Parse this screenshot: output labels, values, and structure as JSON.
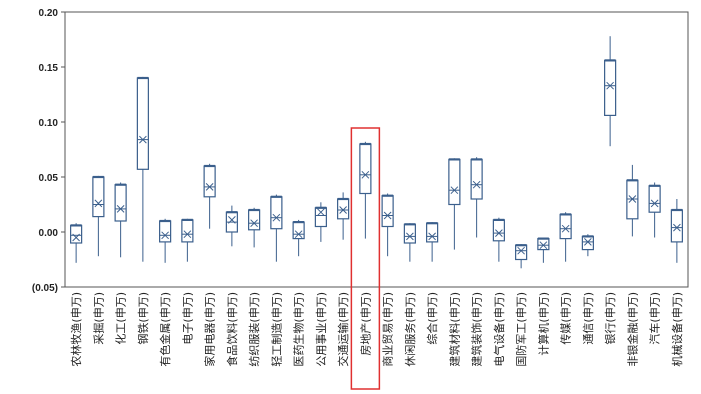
{
  "chart_data": {
    "type": "box",
    "y_axis": {
      "min": -0.05,
      "max": 0.2,
      "ticks": [
        0.2,
        0.15,
        0.1,
        0.05,
        0.0,
        -0.05
      ],
      "tick_labels": [
        "0.20",
        "0.15",
        "0.10",
        "0.05",
        "0.00",
        "(0.05)"
      ]
    },
    "grid": false,
    "legend": "none",
    "colors": {
      "box": "#3b5f8c",
      "highlight": "#e03030",
      "axis": "#555555"
    },
    "highlight_category": "房地产(申万)",
    "categories": [
      "农林牧渔(申万)",
      "采掘(申万)",
      "化工(申万)",
      "钢铁(申万)",
      "有色金属(申万)",
      "电子(申万)",
      "家用电器(申万)",
      "食品饮料(申万)",
      "纺织服装(申万)",
      "轻工制造(申万)",
      "医药生物(申万)",
      "公用事业(申万)",
      "交通运输(申万)",
      "房地产(申万)",
      "商业贸易(申万)",
      "休闲服务(申万)",
      "综合(申万)",
      "建筑材料(申万)",
      "建筑装饰(申万)",
      "电气设备(申万)",
      "国防军工(申万)",
      "计算机(申万)",
      "传媒(申万)",
      "通信(申万)",
      "银行(申万)",
      "非银金融(申万)",
      "汽车(申万)",
      "机械设备(申万)"
    ],
    "series": [
      {
        "min": -0.028,
        "q1": -0.01,
        "median": -0.003,
        "mean": -0.005,
        "q3": 0.006,
        "max": 0.008
      },
      {
        "min": -0.022,
        "q1": 0.014,
        "median": 0.025,
        "mean": 0.026,
        "q3": 0.05,
        "max": 0.051
      },
      {
        "min": -0.023,
        "q1": 0.01,
        "median": 0.021,
        "mean": 0.021,
        "q3": 0.043,
        "max": 0.045
      },
      {
        "min": -0.027,
        "q1": 0.057,
        "median": 0.084,
        "mean": 0.084,
        "q3": 0.14,
        "max": 0.141
      },
      {
        "min": -0.028,
        "q1": -0.009,
        "median": -0.003,
        "mean": -0.003,
        "q3": 0.01,
        "max": 0.012
      },
      {
        "min": -0.027,
        "q1": -0.009,
        "median": -0.002,
        "mean": -0.002,
        "q3": 0.011,
        "max": 0.012
      },
      {
        "min": 0.003,
        "q1": 0.032,
        "median": 0.041,
        "mean": 0.041,
        "q3": 0.06,
        "max": 0.062
      },
      {
        "min": -0.013,
        "q1": 0.0,
        "median": 0.009,
        "mean": 0.011,
        "q3": 0.018,
        "max": 0.024
      },
      {
        "min": -0.014,
        "q1": 0.002,
        "median": 0.008,
        "mean": 0.008,
        "q3": 0.02,
        "max": 0.022
      },
      {
        "min": -0.027,
        "q1": 0.003,
        "median": 0.013,
        "mean": 0.013,
        "q3": 0.032,
        "max": 0.034
      },
      {
        "min": -0.022,
        "q1": -0.006,
        "median": -0.002,
        "mean": -0.002,
        "q3": 0.009,
        "max": 0.011
      },
      {
        "min": -0.009,
        "q1": 0.005,
        "median": 0.015,
        "mean": 0.018,
        "q3": 0.022,
        "max": 0.027
      },
      {
        "min": -0.007,
        "q1": 0.012,
        "median": 0.02,
        "mean": 0.02,
        "q3": 0.03,
        "max": 0.036
      },
      {
        "min": -0.006,
        "q1": 0.035,
        "median": 0.052,
        "mean": 0.052,
        "q3": 0.08,
        "max": 0.082
      },
      {
        "min": -0.022,
        "q1": 0.005,
        "median": 0.015,
        "mean": 0.015,
        "q3": 0.033,
        "max": 0.035
      },
      {
        "min": -0.027,
        "q1": -0.01,
        "median": -0.004,
        "mean": -0.004,
        "q3": 0.007,
        "max": 0.008
      },
      {
        "min": -0.027,
        "q1": -0.009,
        "median": -0.004,
        "mean": -0.004,
        "q3": 0.008,
        "max": 0.009
      },
      {
        "min": -0.016,
        "q1": 0.025,
        "median": 0.038,
        "mean": 0.038,
        "q3": 0.066,
        "max": 0.067
      },
      {
        "min": -0.005,
        "q1": 0.03,
        "median": 0.043,
        "mean": 0.043,
        "q3": 0.066,
        "max": 0.068
      },
      {
        "min": -0.027,
        "q1": -0.008,
        "median": -0.001,
        "mean": -0.001,
        "q3": 0.011,
        "max": 0.013
      },
      {
        "min": -0.033,
        "q1": -0.025,
        "median": -0.017,
        "mean": -0.017,
        "q3": -0.012,
        "max": -0.011
      },
      {
        "min": -0.028,
        "q1": -0.016,
        "median": -0.012,
        "mean": -0.012,
        "q3": -0.006,
        "max": -0.005
      },
      {
        "min": -0.027,
        "q1": -0.006,
        "median": 0.003,
        "mean": 0.003,
        "q3": 0.016,
        "max": 0.018
      },
      {
        "min": -0.022,
        "q1": -0.016,
        "median": -0.009,
        "mean": -0.009,
        "q3": -0.004,
        "max": -0.002
      },
      {
        "min": 0.078,
        "q1": 0.106,
        "median": 0.133,
        "mean": 0.133,
        "q3": 0.156,
        "max": 0.178
      },
      {
        "min": -0.004,
        "q1": 0.012,
        "median": 0.03,
        "mean": 0.03,
        "q3": 0.047,
        "max": 0.061
      },
      {
        "min": -0.005,
        "q1": 0.018,
        "median": 0.026,
        "mean": 0.026,
        "q3": 0.042,
        "max": 0.045
      },
      {
        "min": -0.028,
        "q1": -0.009,
        "median": 0.004,
        "mean": 0.004,
        "q3": 0.02,
        "max": 0.03
      }
    ]
  }
}
